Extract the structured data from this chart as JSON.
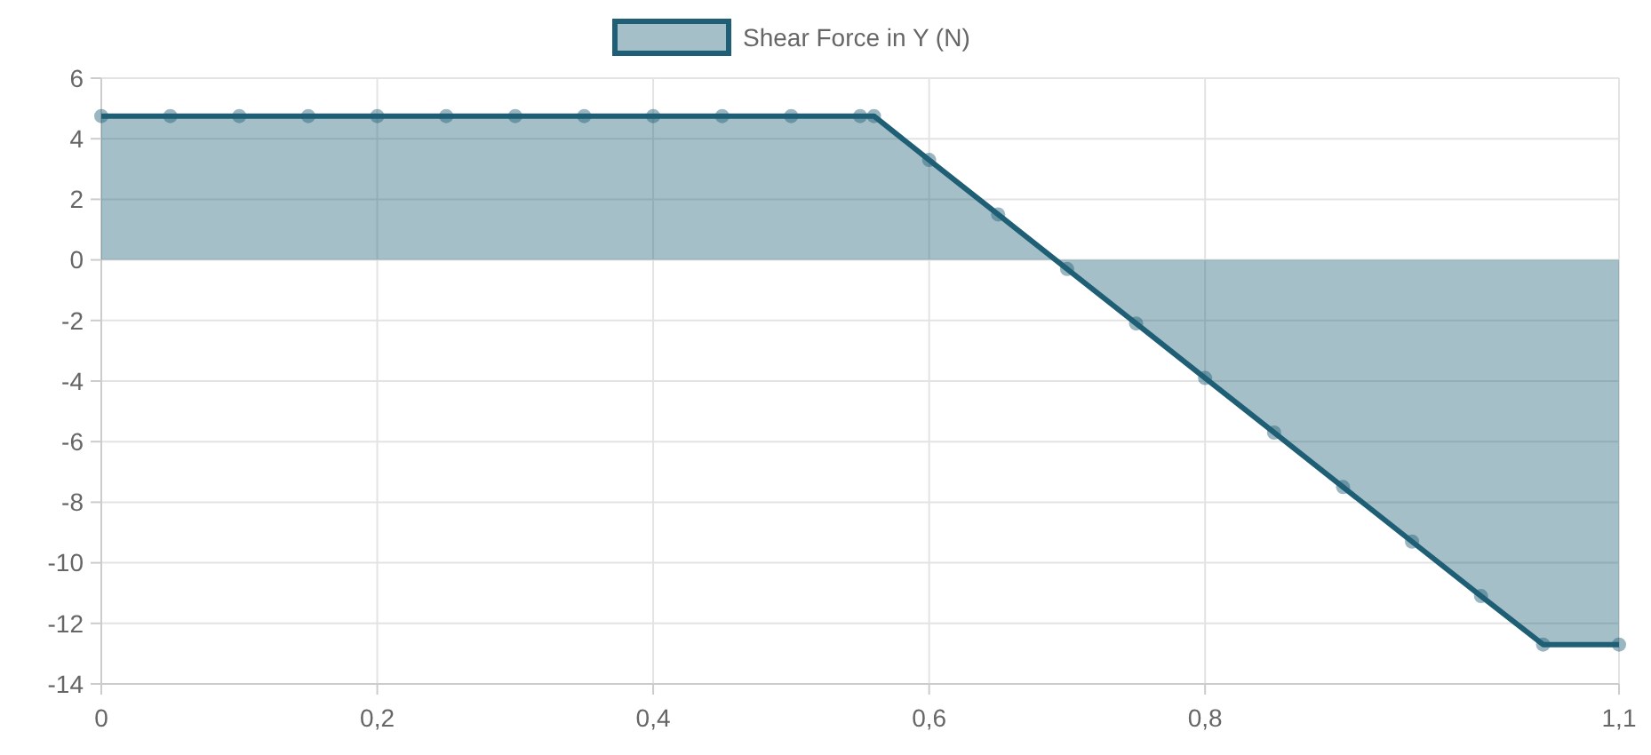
{
  "chart_data": {
    "type": "area",
    "x": [
      0,
      0.05,
      0.1,
      0.15,
      0.2,
      0.25,
      0.3,
      0.35,
      0.4,
      0.45,
      0.5,
      0.55,
      0.56,
      0.6,
      0.65,
      0.7,
      0.75,
      0.8,
      0.85,
      0.9,
      0.95,
      1.0,
      1.045,
      1.1
    ],
    "series": [
      {
        "name": "Shear Force in Y (N)",
        "color": "#1f5f75",
        "values": [
          4.75,
          4.75,
          4.75,
          4.75,
          4.75,
          4.75,
          4.75,
          4.75,
          4.75,
          4.75,
          4.75,
          4.75,
          4.75,
          3.3,
          1.5,
          -0.3,
          -2.1,
          -3.9,
          -5.7,
          -7.5,
          -9.3,
          -11.1,
          -12.7,
          -12.7
        ]
      }
    ],
    "xlim": [
      0,
      1.1
    ],
    "xticks": [
      0,
      {
        "value": 0.2,
        "label": "0,2"
      },
      {
        "value": 0.4,
        "label": "0,4"
      },
      {
        "value": 0.6,
        "label": "0,6"
      },
      {
        "value": 0.8,
        "label": "0,8"
      },
      {
        "value": 1.1,
        "label": "1,1"
      }
    ],
    "ylim": [
      -14,
      6
    ],
    "yticks": [
      -14,
      -12,
      -10,
      -8,
      -6,
      -4,
      -2,
      0,
      2,
      4,
      6
    ],
    "grid": true,
    "legend": "top",
    "marker": "circle",
    "line_style": "solid"
  }
}
